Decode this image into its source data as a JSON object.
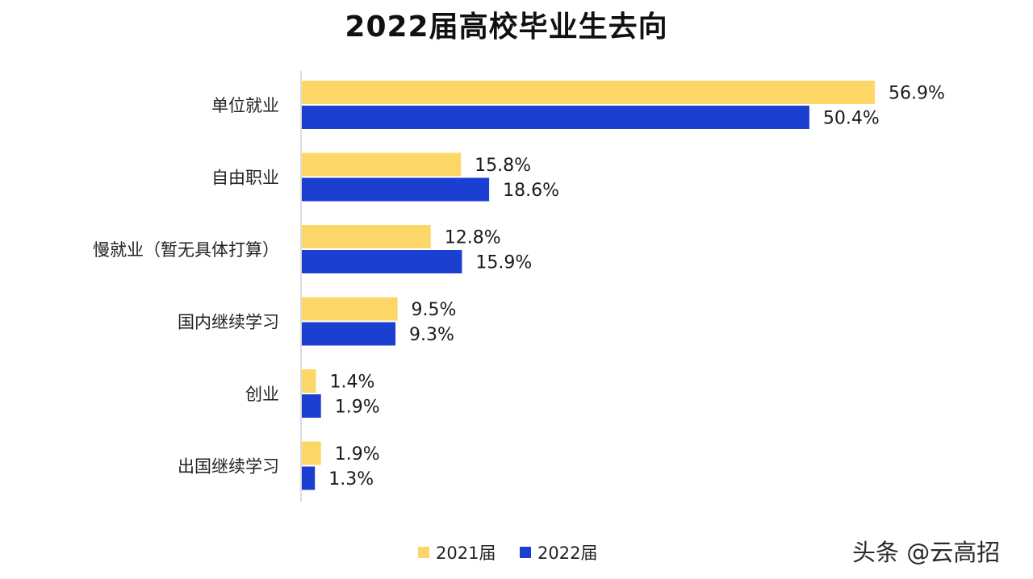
{
  "chart_data": {
    "type": "bar",
    "orientation": "horizontal",
    "title": "2022届高校毕业生去向",
    "categories": [
      "单位就业",
      "自由职业",
      "慢就业（暂无具体打算）",
      "国内继续学习",
      "创业",
      "出国继续学习"
    ],
    "series": [
      {
        "name": "2021届",
        "values": [
          56.9,
          15.8,
          12.8,
          9.5,
          1.4,
          1.9
        ],
        "labels": [
          "56.9%",
          "15.8%",
          "12.8%",
          "9.5%",
          "1.4%",
          "1.9%"
        ],
        "color": "#FCD667"
      },
      {
        "name": "2022届",
        "values": [
          50.4,
          18.6,
          15.9,
          9.3,
          1.9,
          1.3
        ],
        "labels": [
          "50.4%",
          "18.6%",
          "15.9%",
          "9.3%",
          "1.9%",
          "1.3%"
        ],
        "color": "#1B3FD1"
      }
    ],
    "xlim": [
      0,
      56.9
    ],
    "grid": false,
    "legend_position": "bottom"
  },
  "watermark": "头条 @云高招"
}
